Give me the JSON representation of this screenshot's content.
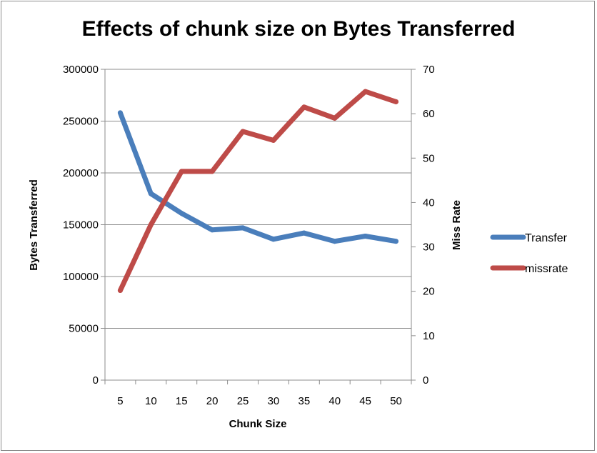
{
  "chart_data": {
    "type": "line",
    "title": "Effects of chunk size on Bytes Transferred",
    "xlabel": "Chunk Size",
    "ylabel": "Bytes Transferred",
    "y2label": "Miss Rate",
    "x": [
      5,
      10,
      15,
      20,
      25,
      30,
      35,
      40,
      45,
      50
    ],
    "ylim": [
      0,
      300000
    ],
    "y2lim": [
      0,
      70
    ],
    "y_ticks": [
      0,
      50000,
      100000,
      150000,
      200000,
      250000,
      300000
    ],
    "y2_ticks": [
      0,
      10,
      20,
      30,
      40,
      50,
      60,
      70
    ],
    "grid": true,
    "legend_position": "right",
    "series": [
      {
        "name": "Transfer",
        "axis": "left",
        "color": "#4a7ebb",
        "values": [
          258000,
          180000,
          161000,
          145000,
          147000,
          136000,
          142000,
          134000,
          139000,
          134000
        ]
      },
      {
        "name": "missrate",
        "axis": "right",
        "color": "#be4b48",
        "values": [
          20.2,
          35,
          47,
          47,
          56,
          54,
          61.5,
          59,
          65,
          62.7
        ]
      }
    ]
  }
}
